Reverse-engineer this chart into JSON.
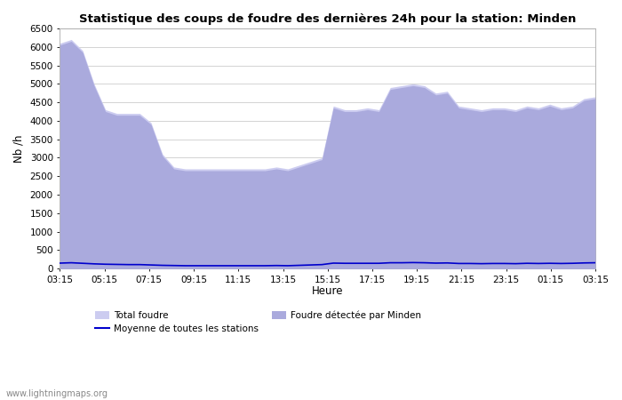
{
  "title": "Statistique des coups de foudre des dernières 24h pour la station: Minden",
  "ylabel": "Nb /h",
  "xlabel": "Heure",
  "watermark": "www.lightningmaps.org",
  "ylim": [
    0,
    6500
  ],
  "yticks": [
    0,
    500,
    1000,
    1500,
    2000,
    2500,
    3000,
    3500,
    4000,
    4500,
    5000,
    5500,
    6000,
    6500
  ],
  "xtick_labels": [
    "03:15",
    "05:15",
    "07:15",
    "09:15",
    "11:15",
    "13:15",
    "15:15",
    "17:15",
    "19:15",
    "21:15",
    "23:15",
    "01:15",
    "03:15"
  ],
  "color_total": "#ccccf0",
  "color_minden": "#aaaadd",
  "color_moyenne": "#0000cc",
  "color_bg": "#ffffff",
  "color_grid": "#cccccc",
  "total_foudre": [
    6100,
    6200,
    5900,
    5000,
    4300,
    4200,
    4200,
    4200,
    3950,
    3100,
    2750,
    2700,
    2700,
    2700,
    2700,
    2700,
    2700,
    2700,
    2700,
    2750,
    2700,
    2800,
    2900,
    3000,
    4400,
    4300,
    4300,
    4350,
    4300,
    4900,
    4950,
    5000,
    4950,
    4750,
    4800,
    4400,
    4350,
    4300,
    4350,
    4350,
    4300,
    4400,
    4350,
    4450,
    4350,
    4400,
    4600,
    4650
  ],
  "minden_foudre": [
    6050,
    6150,
    5850,
    4950,
    4250,
    4150,
    4150,
    4150,
    3900,
    3050,
    2700,
    2650,
    2650,
    2650,
    2650,
    2650,
    2650,
    2650,
    2650,
    2700,
    2650,
    2750,
    2850,
    2950,
    4350,
    4250,
    4250,
    4300,
    4250,
    4850,
    4900,
    4950,
    4900,
    4700,
    4750,
    4350,
    4300,
    4250,
    4300,
    4300,
    4250,
    4350,
    4300,
    4400,
    4300,
    4350,
    4550,
    4600
  ],
  "moyenne": [
    150,
    160,
    145,
    130,
    120,
    115,
    110,
    110,
    100,
    90,
    85,
    80,
    80,
    80,
    80,
    80,
    80,
    80,
    80,
    85,
    80,
    90,
    100,
    110,
    150,
    145,
    145,
    145,
    145,
    160,
    160,
    165,
    160,
    150,
    155,
    140,
    140,
    135,
    140,
    140,
    135,
    145,
    140,
    145,
    140,
    145,
    155,
    160
  ]
}
